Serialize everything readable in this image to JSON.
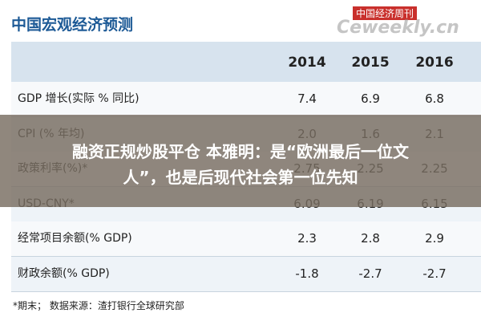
{
  "header": {
    "title": "中国宏观经济预测",
    "watermark_cn": "中国经济周刊",
    "watermark_en": "Ceweekly.cn"
  },
  "table": {
    "columns": [
      "2014",
      "2015",
      "2016"
    ],
    "rows": [
      [
        "GDP 增长(实际 % 同比)",
        "7.4",
        "6.9",
        "6.8"
      ],
      [
        "CPI (% 年均)",
        "2.0",
        "1.6",
        "2.1"
      ],
      [
        "政策利率(%)*",
        "2.75",
        "2.25",
        "2.25"
      ],
      [
        "USD-CNY*",
        "6.09",
        "6.19",
        "6.15"
      ],
      [
        "经常项目余额(% GDP)",
        "2.3",
        "2.8",
        "2.9"
      ],
      [
        "财政余额(% GDP)",
        "-1.8",
        "-2.7",
        "-2.7"
      ]
    ]
  },
  "footnote": "*期末；  数据来源：渣打银行全球研究部",
  "overlay": {
    "lines": [
      "融资正规炒股平仓 本雅明：是“欧洲最后一位文",
      "人”，也是后现代社会第一位先知"
    ]
  }
}
